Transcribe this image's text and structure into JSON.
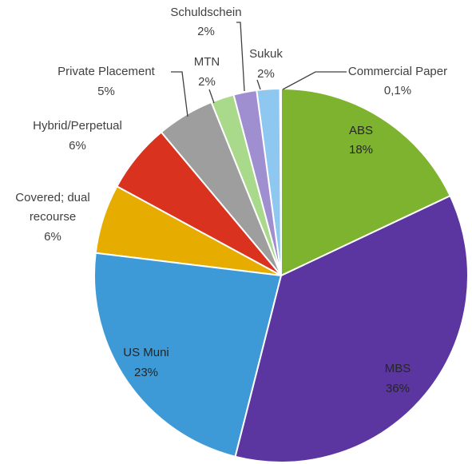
{
  "chart_data": {
    "type": "pie",
    "categories": [
      "ABS",
      "MBS",
      "US Muni",
      "Covered; dual recourse",
      "Hybrid/Perpetual",
      "Private Placement",
      "MTN",
      "Schuldschein",
      "Sukuk",
      "Commercial Paper"
    ],
    "values": [
      18,
      36,
      23,
      6,
      6,
      5,
      2,
      2,
      2,
      0.1
    ],
    "value_labels": [
      "18%",
      "36%",
      "23%",
      "6%",
      "6%",
      "5%",
      "2%",
      "2%",
      "2%",
      "0,1%"
    ],
    "colors": [
      "#7db32f",
      "#5b35a0",
      "#3d9ad6",
      "#e6ad00",
      "#d9321f",
      "#9e9e9e",
      "#a9d98a",
      "#a08fd0",
      "#8ec8f0",
      "#e8a838"
    ]
  }
}
